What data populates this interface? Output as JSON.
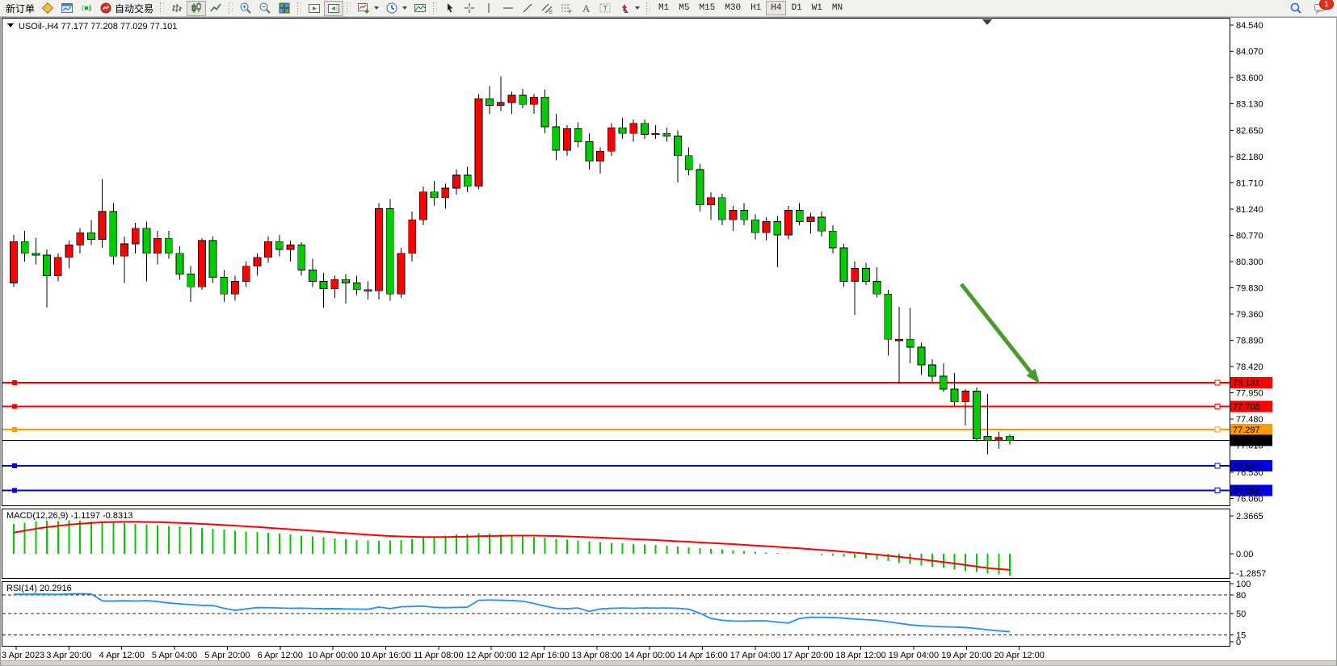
{
  "toolbar": {
    "new_order_label": "新订单",
    "autotrade_label": "自动交易",
    "notification_count": "1",
    "timeframes": [
      "M1",
      "M5",
      "M15",
      "M30",
      "H1",
      "H4",
      "D1",
      "W1",
      "MN"
    ],
    "active_timeframe": "H4",
    "icons": [
      "symbols-diamond-icon",
      "market-watch-icon",
      "signals-icon",
      "autotrade-icon",
      "bar-chart-icon",
      "candlestick-chart-icon",
      "line-chart-icon",
      "zoom-in-icon",
      "zoom-out-icon",
      "tile-windows-icon",
      "auto-scroll-icon",
      "chart-shift-icon",
      "indicators-icon",
      "periods-clock-icon",
      "templates-icon",
      "cursor-icon",
      "crosshair-icon",
      "vertical-line-icon",
      "horizontal-line-icon",
      "trendline-icon",
      "channel-icon",
      "fibonacci-icon",
      "text-icon",
      "text-label-icon",
      "arrow-shapes-icon",
      "search-icon",
      "message-icon"
    ]
  },
  "chart_data": {
    "type": "candlestick",
    "symbol_quote": "USOil-,H4  77.177 77.208 77.029 77.101",
    "ohlc_quote": {
      "symbol": "USOil-",
      "period": "H4",
      "open": "77.177",
      "high": "77.208",
      "low": "77.029",
      "close": "77.101"
    },
    "up_color": "#ff0000",
    "down_color": "#00cc00",
    "y_axis": {
      "ticks": [
        "84.540",
        "84.070",
        "83.600",
        "83.130",
        "82.650",
        "82.180",
        "81.710",
        "81.240",
        "80.770",
        "80.300",
        "79.830",
        "79.360",
        "78.890",
        "78.420",
        "77.950",
        "77.480",
        "77.010",
        "76.530",
        "76.060"
      ]
    },
    "x_axis": {
      "labels": [
        "3 Apr 2023",
        "3 Apr 20:00",
        "4 Apr 12:00",
        "5 Apr 04:00",
        "5 Apr 20:00",
        "6 Apr 12:00",
        "10 Apr 00:00",
        "10 Apr 16:00",
        "11 Apr 08:00",
        "12 Apr 00:00",
        "12 Apr 16:00",
        "13 Apr 08:00",
        "14 Apr 00:00",
        "14 Apr 16:00",
        "17 Apr 04:00",
        "17 Apr 20:00",
        "18 Apr 12:00",
        "19 Apr 04:00",
        "19 Apr 20:00",
        "20 Apr 12:00"
      ]
    },
    "horizontal_lines": [
      {
        "price": 78.131,
        "label": "78.131",
        "color": "#ff0000"
      },
      {
        "price": 77.708,
        "label": "77.708",
        "color": "#ff0000"
      },
      {
        "price": 77.297,
        "label": "77.297",
        "color": "#ff9900"
      },
      {
        "price": 76.647,
        "label": "76.647",
        "color": "#0000e0"
      },
      {
        "price": 76.201,
        "label": "76.201",
        "color": "#0000e0"
      }
    ],
    "current_price": {
      "value": 77.101,
      "label": "77.101",
      "color": "#000000"
    },
    "arrow_annotation": {
      "from": [
        1190,
        352
      ],
      "to": [
        1287,
        475
      ],
      "color": "#4c9a2d"
    },
    "candles": [
      [
        79.92,
        80.78,
        79.85,
        80.66
      ],
      [
        80.66,
        80.85,
        80.3,
        80.45
      ],
      [
        80.45,
        80.72,
        80.25,
        80.42
      ],
      [
        80.42,
        80.52,
        79.48,
        80.05
      ],
      [
        80.05,
        80.45,
        79.95,
        80.38
      ],
      [
        80.38,
        80.68,
        80.18,
        80.6
      ],
      [
        80.6,
        80.9,
        80.45,
        80.82
      ],
      [
        80.82,
        81.05,
        80.6,
        80.7
      ],
      [
        80.7,
        81.78,
        80.55,
        81.2
      ],
      [
        81.2,
        81.35,
        80.25,
        80.4
      ],
      [
        80.4,
        80.75,
        79.92,
        80.62
      ],
      [
        80.62,
        81.0,
        80.45,
        80.9
      ],
      [
        80.9,
        81.02,
        79.95,
        80.45
      ],
      [
        80.45,
        80.85,
        80.25,
        80.72
      ],
      [
        80.72,
        80.85,
        80.35,
        80.45
      ],
      [
        80.45,
        80.58,
        79.98,
        80.08
      ],
      [
        80.08,
        80.22,
        79.58,
        79.85
      ],
      [
        79.85,
        80.72,
        79.8,
        80.68
      ],
      [
        80.68,
        80.75,
        79.92,
        80.02
      ],
      [
        80.02,
        80.15,
        79.58,
        79.72
      ],
      [
        79.72,
        80.05,
        79.6,
        79.95
      ],
      [
        79.95,
        80.3,
        79.85,
        80.22
      ],
      [
        80.22,
        80.45,
        80.05,
        80.38
      ],
      [
        80.38,
        80.75,
        80.28,
        80.66
      ],
      [
        80.66,
        80.78,
        80.4,
        80.52
      ],
      [
        80.52,
        80.68,
        80.3,
        80.6
      ],
      [
        80.6,
        80.65,
        80.05,
        80.15
      ],
      [
        80.15,
        80.35,
        79.85,
        79.95
      ],
      [
        79.95,
        80.1,
        79.48,
        79.82
      ],
      [
        79.82,
        80.05,
        79.65,
        79.98
      ],
      [
        79.98,
        80.08,
        79.55,
        79.92
      ],
      [
        79.92,
        80.05,
        79.7,
        79.8
      ],
      [
        79.8,
        79.95,
        79.62,
        79.78
      ],
      [
        79.78,
        81.35,
        79.62,
        81.25
      ],
      [
        81.25,
        81.42,
        79.6,
        79.72
      ],
      [
        79.72,
        80.55,
        79.65,
        80.45
      ],
      [
        80.45,
        81.2,
        80.3,
        81.05
      ],
      [
        81.05,
        81.65,
        80.95,
        81.55
      ],
      [
        81.55,
        81.75,
        81.3,
        81.45
      ],
      [
        81.45,
        81.7,
        81.25,
        81.62
      ],
      [
        81.62,
        81.95,
        81.5,
        81.85
      ],
      [
        81.85,
        82.0,
        81.55,
        81.65
      ],
      [
        81.65,
        83.3,
        81.6,
        83.22
      ],
      [
        83.22,
        83.45,
        82.95,
        83.1
      ],
      [
        83.1,
        83.62,
        83.0,
        83.15
      ],
      [
        83.15,
        83.35,
        82.95,
        83.28
      ],
      [
        83.28,
        83.4,
        83.05,
        83.12
      ],
      [
        83.12,
        83.3,
        82.95,
        83.25
      ],
      [
        83.25,
        83.38,
        82.6,
        82.72
      ],
      [
        82.72,
        82.95,
        82.12,
        82.3
      ],
      [
        82.3,
        82.75,
        82.2,
        82.68
      ],
      [
        82.68,
        82.8,
        82.35,
        82.45
      ],
      [
        82.45,
        82.6,
        81.95,
        82.1
      ],
      [
        82.1,
        82.35,
        81.88,
        82.28
      ],
      [
        82.28,
        82.78,
        82.2,
        82.7
      ],
      [
        82.7,
        82.88,
        82.5,
        82.6
      ],
      [
        82.6,
        82.85,
        82.45,
        82.78
      ],
      [
        82.78,
        82.85,
        82.5,
        82.58
      ],
      [
        82.58,
        82.75,
        82.5,
        82.6
      ],
      [
        82.6,
        82.7,
        82.45,
        82.55
      ],
      [
        82.55,
        82.65,
        81.72,
        82.2
      ],
      [
        82.2,
        82.35,
        81.85,
        81.95
      ],
      [
        81.95,
        82.05,
        81.2,
        81.32
      ],
      [
        81.32,
        81.55,
        81.05,
        81.45
      ],
      [
        81.45,
        81.52,
        80.95,
        81.05
      ],
      [
        81.05,
        81.3,
        80.85,
        81.22
      ],
      [
        81.22,
        81.35,
        80.95,
        81.05
      ],
      [
        81.05,
        81.15,
        80.7,
        80.82
      ],
      [
        80.82,
        81.1,
        80.68,
        81.02
      ],
      [
        81.02,
        81.12,
        80.2,
        80.78
      ],
      [
        80.78,
        81.3,
        80.7,
        81.22
      ],
      [
        81.22,
        81.35,
        80.95,
        81.02
      ],
      [
        81.02,
        81.18,
        80.8,
        81.1
      ],
      [
        81.1,
        81.2,
        80.75,
        80.85
      ],
      [
        80.85,
        80.95,
        80.45,
        80.55
      ],
      [
        80.55,
        80.62,
        79.85,
        79.95
      ],
      [
        79.95,
        80.3,
        79.35,
        80.18
      ],
      [
        80.18,
        80.28,
        79.88,
        79.95
      ],
      [
        79.95,
        80.2,
        79.66,
        79.72
      ],
      [
        79.72,
        79.8,
        78.62,
        78.91
      ],
      [
        78.91,
        79.49,
        78.11,
        78.91
      ],
      [
        78.91,
        79.47,
        78.48,
        78.77
      ],
      [
        78.77,
        78.85,
        78.27,
        78.45
      ],
      [
        78.45,
        78.55,
        78.15,
        78.25
      ],
      [
        78.25,
        78.48,
        77.97,
        78.02
      ],
      [
        78.02,
        78.31,
        77.72,
        77.79
      ],
      [
        77.79,
        78.02,
        77.37,
        77.98
      ],
      [
        77.98,
        78.05,
        77.08,
        77.13
      ],
      [
        77.17,
        77.93,
        76.85,
        77.1
      ],
      [
        77.1,
        77.25,
        76.95,
        77.15
      ],
      [
        77.177,
        77.208,
        77.029,
        77.101
      ]
    ],
    "macd": {
      "label": "MACD(12,26,9)",
      "values": [
        "-1.1197",
        "-0.8313"
      ],
      "scale": [
        "2.3665",
        "0.00",
        "-1.2857"
      ],
      "histogram_color": "#00cc00",
      "signal_color": "#ff0000",
      "histogram": [
        1.55,
        1.62,
        1.68,
        1.72,
        1.7,
        1.74,
        1.72,
        1.68,
        1.64,
        1.66,
        1.6,
        1.55,
        1.52,
        1.48,
        1.45,
        1.42,
        1.38,
        1.34,
        1.3,
        1.25,
        1.2,
        1.16,
        1.12,
        1.08,
        1.04,
        1.0,
        0.95,
        0.9,
        0.85,
        0.8,
        0.76,
        0.72,
        0.68,
        0.66,
        0.68,
        0.72,
        0.78,
        0.85,
        0.9,
        0.95,
        1.0,
        1.03,
        1.06,
        1.04,
        1.0,
        0.96,
        0.92,
        0.88,
        0.83,
        0.78,
        0.73,
        0.68,
        0.64,
        0.6,
        0.57,
        0.54,
        0.51,
        0.48,
        0.45,
        0.42,
        0.38,
        0.34,
        0.3,
        0.26,
        0.22,
        0.18,
        0.14,
        0.1,
        0.07,
        0.04,
        0.02,
        0.0,
        -0.03,
        -0.07,
        -0.11,
        -0.15,
        -0.2,
        -0.25,
        -0.31,
        -0.38,
        -0.45,
        -0.52,
        -0.6,
        -0.67,
        -0.74,
        -0.81,
        -0.88,
        -0.95,
        -1.02,
        -1.07,
        -1.1197
      ],
      "signal": [
        1.1,
        1.2,
        1.3,
        1.38,
        1.45,
        1.51,
        1.56,
        1.6,
        1.63,
        1.65,
        1.66,
        1.66,
        1.65,
        1.64,
        1.62,
        1.6,
        1.58,
        1.55,
        1.52,
        1.49,
        1.46,
        1.42,
        1.39,
        1.35,
        1.31,
        1.27,
        1.23,
        1.19,
        1.15,
        1.11,
        1.07,
        1.03,
        0.99,
        0.95,
        0.92,
        0.9,
        0.88,
        0.87,
        0.87,
        0.87,
        0.88,
        0.89,
        0.91,
        0.92,
        0.93,
        0.94,
        0.94,
        0.94,
        0.93,
        0.92,
        0.9,
        0.88,
        0.86,
        0.84,
        0.81,
        0.79,
        0.76,
        0.74,
        0.71,
        0.68,
        0.65,
        0.62,
        0.59,
        0.56,
        0.53,
        0.5,
        0.46,
        0.43,
        0.39,
        0.36,
        0.32,
        0.28,
        0.24,
        0.2,
        0.16,
        0.11,
        0.06,
        0.01,
        -0.04,
        -0.1,
        -0.16,
        -0.22,
        -0.29,
        -0.36,
        -0.43,
        -0.5,
        -0.58,
        -0.66,
        -0.74,
        -0.79,
        -0.8313
      ]
    },
    "rsi": {
      "label": "RSI(14)",
      "value": "20.2916",
      "line_color": "#1e90ff",
      "levels": [
        80,
        50,
        15
      ],
      "scale_labels": [
        "100",
        "80",
        "50",
        "15",
        "0"
      ],
      "values": [
        81.5,
        81.3,
        81.6,
        81.4,
        81.2,
        81.8,
        82.3,
        81.9,
        70.6,
        70.3,
        70.8,
        70.4,
        71.0,
        69.5,
        67.2,
        65.8,
        64.5,
        63.4,
        63.0,
        58.5,
        55.2,
        57.5,
        59.8,
        59.5,
        59.0,
        58.6,
        58.8,
        58.2,
        57.8,
        58.0,
        57.6,
        57.2,
        57.0,
        60.5,
        58.0,
        61.0,
        61.5,
        62.0,
        60.2,
        59.6,
        60.0,
        60.5,
        71.5,
        72.0,
        71.6,
        71.2,
        70.0,
        66.5,
        62.0,
        58.5,
        57.8,
        59.0,
        53.5,
        57.5,
        58.5,
        59.0,
        58.6,
        59.2,
        58.8,
        59.0,
        58.5,
        57.0,
        50.5,
        42.0,
        39.0,
        37.8,
        37.6,
        38.2,
        38.0,
        36.0,
        34.5,
        42.0,
        44.0,
        43.8,
        43.5,
        42.5,
        41.0,
        40.0,
        39.0,
        36.5,
        34.0,
        31.5,
        30.0,
        29.3,
        28.5,
        28.0,
        27.2,
        25.5,
        23.5,
        21.8,
        20.29
      ]
    }
  }
}
